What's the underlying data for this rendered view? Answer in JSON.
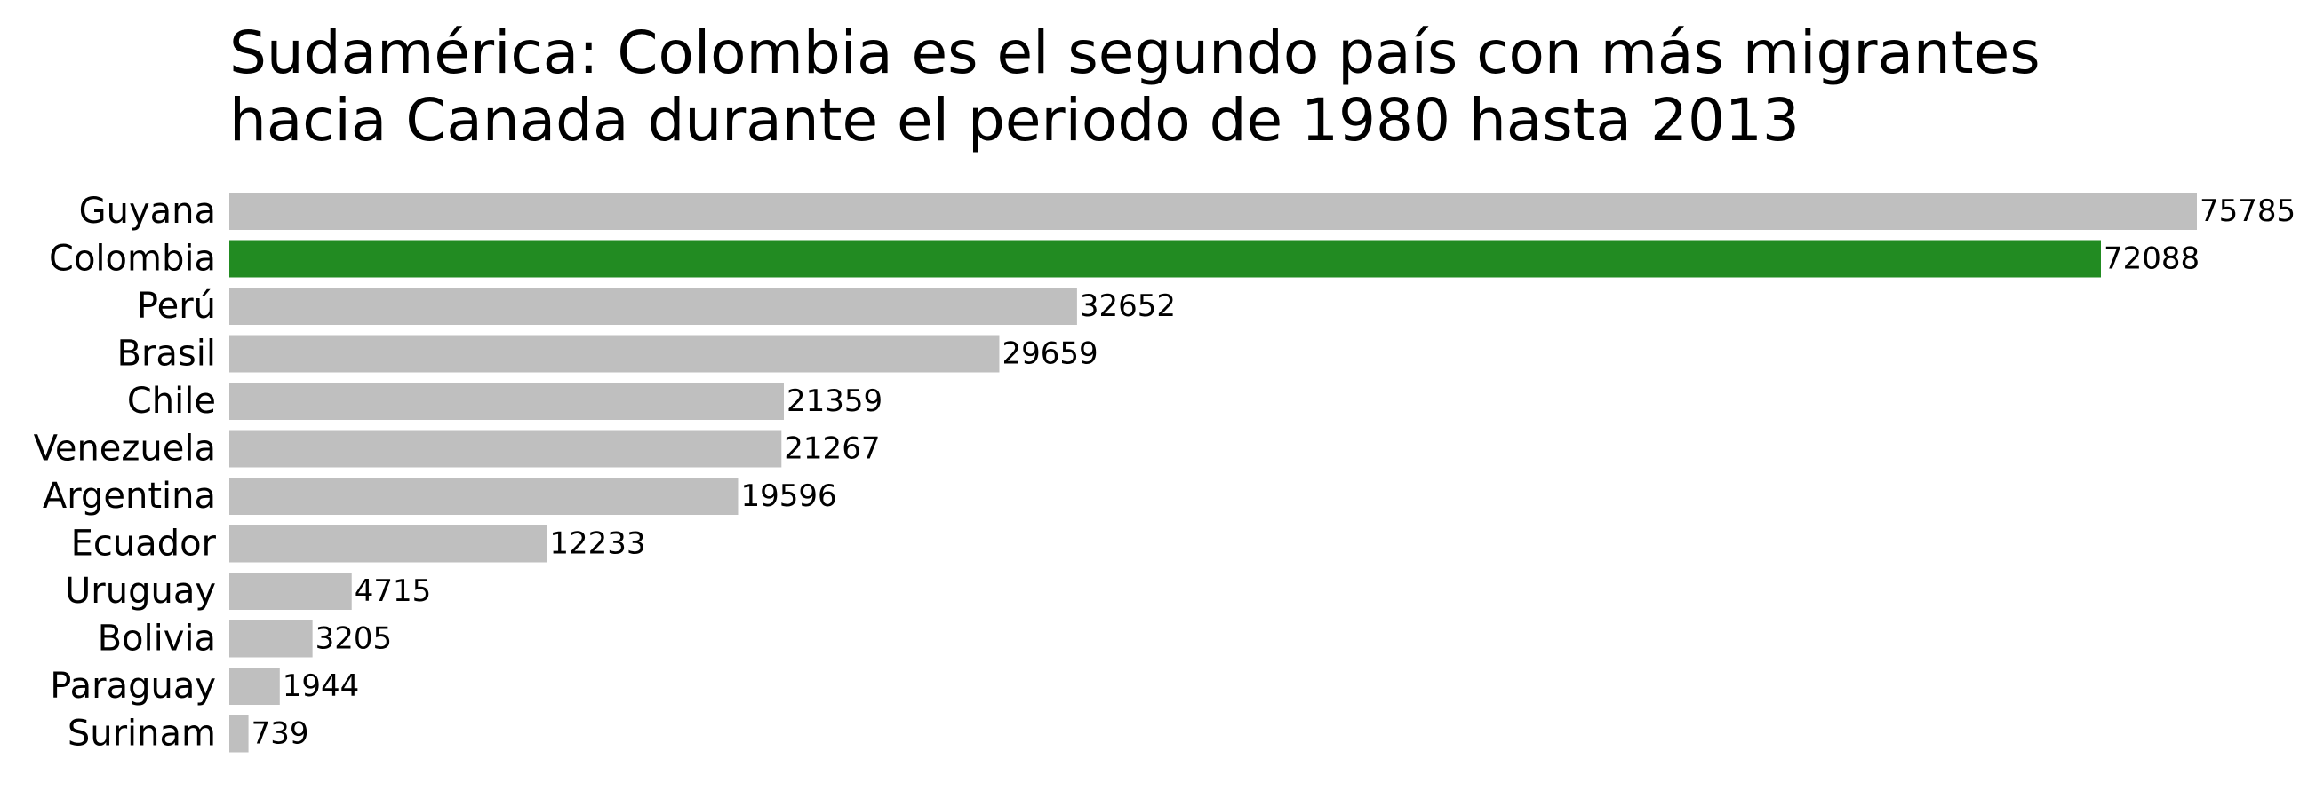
{
  "chart_data": {
    "type": "bar",
    "orientation": "horizontal",
    "title_lines": [
      "Sudamérica: Colombia es el segundo país con más migrantes",
      "hacia Canada durante el periodo de 1980 hasta 2013"
    ],
    "xlabel": "",
    "ylabel": "",
    "categories": [
      "Guyana",
      "Colombia",
      "Perú",
      "Brasil",
      "Chile",
      "Venezuela",
      "Argentina",
      "Ecuador",
      "Uruguay",
      "Bolivia",
      "Paraguay",
      "Surinam"
    ],
    "values": [
      75785,
      72088,
      32652,
      29659,
      21359,
      21267,
      19596,
      12233,
      4715,
      3205,
      1944,
      739
    ],
    "value_labels": [
      "75785",
      "72088",
      "32652",
      "29659",
      "21359",
      "21267",
      "19596",
      "12233",
      "4715",
      "3205",
      "1944",
      "739"
    ],
    "highlight_category": "Colombia",
    "colors": {
      "default_bar": "#bfbfbf",
      "highlight_bar": "#228b22"
    },
    "grid": false,
    "axes_visible": false,
    "legend": "none"
  }
}
